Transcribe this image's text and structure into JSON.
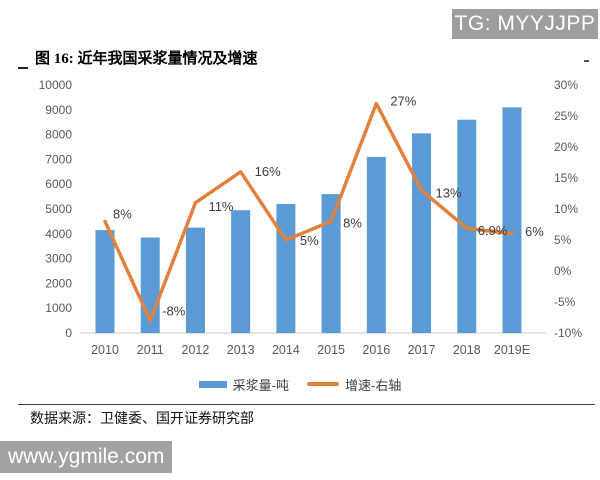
{
  "badge": {
    "text": "TG: MYYJJPP",
    "bg_color": "#9E9E9E"
  },
  "watermark": {
    "text": "www.ygmile.com",
    "bg_color": "#A2A2A2"
  },
  "figure": {
    "title": "图 16: 近年我国采浆量情况及增速",
    "source": "数据来源：卫健委、国开证券研究部"
  },
  "chart_data": {
    "type": "combo-bar-line",
    "title": "图 16: 近年我国采浆量情况及增速",
    "categories": [
      "2010",
      "2011",
      "2012",
      "2013",
      "2014",
      "2015",
      "2016",
      "2017",
      "2018",
      "2019E"
    ],
    "series": [
      {
        "name": "采浆量-吨",
        "type": "bar",
        "axis": "left",
        "color": "#5B9BD5",
        "values": [
          4150,
          3850,
          4250,
          4950,
          5200,
          5600,
          7100,
          8050,
          8600,
          9100
        ]
      },
      {
        "name": "增速-右轴",
        "type": "line",
        "axis": "right",
        "color": "#E2813E",
        "values": [
          8,
          -8,
          11,
          16,
          5,
          8,
          27,
          13,
          6.9,
          6
        ],
        "labels": [
          "8%",
          "-8%",
          "11%",
          "16%",
          "5%",
          "8%",
          "27%",
          "13%",
          "6.9%",
          "6%"
        ]
      }
    ],
    "axes": {
      "left": {
        "min": 0,
        "max": 10000,
        "step": 1000,
        "suffix": ""
      },
      "right": {
        "min": -10,
        "max": 30,
        "step": 5,
        "suffix": "%"
      }
    },
    "grid": false,
    "legend_position": "bottom"
  }
}
